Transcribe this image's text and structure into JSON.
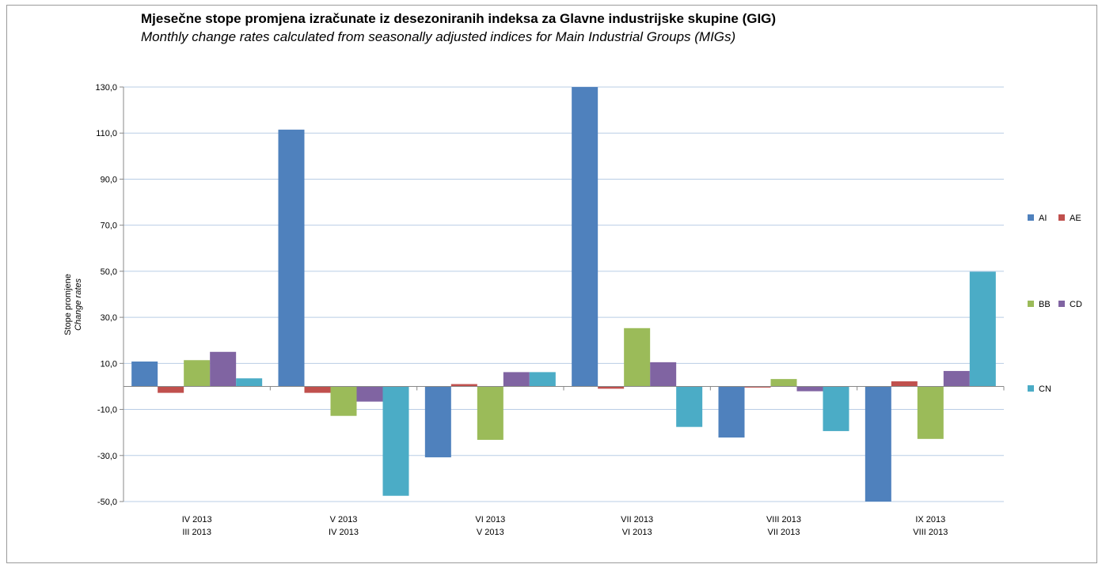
{
  "chart_data": {
    "type": "bar",
    "title": "Mjesečne stope promjena izračunate iz desezoniranih indeksa za Glavne industrijske skupine (GIG)",
    "subtitle": "Monthly change rates calculated from seasonally adjusted indices for Main Industrial Groups (MIGs)",
    "ylabel": "Stope promjene",
    "ylabel_en": "Change rates",
    "ylim": [
      -50,
      130
    ],
    "yticks": [
      "130,0",
      "110,0",
      "90,0",
      "70,0",
      "50,0",
      "30,0",
      "10,0",
      "-10,0",
      "-30,0",
      "-50,0"
    ],
    "ytick_values": [
      130,
      110,
      90,
      70,
      50,
      30,
      10,
      -10,
      -30,
      -50
    ],
    "grid": true,
    "legend_position": "right",
    "categories": [
      {
        "line1": "IV 2013",
        "line2": "III 2013"
      },
      {
        "line1": "V 2013",
        "line2": "IV 2013"
      },
      {
        "line1": "VI 2013",
        "line2": "V 2013"
      },
      {
        "line1": "VII 2013",
        "line2": "VI 2013"
      },
      {
        "line1": "VIII 2013",
        "line2": "VII 2013"
      },
      {
        "line1": "IX 2013",
        "line2": "VIII 2013"
      }
    ],
    "series": [
      {
        "name": "AI",
        "color": "#4f81bd",
        "values": [
          10.8,
          111.5,
          -30.8,
          130.0,
          -22.2,
          -50.0
        ]
      },
      {
        "name": "AE",
        "color": "#c0504d",
        "values": [
          -2.8,
          -2.8,
          1.0,
          -1.0,
          -0.5,
          2.2
        ]
      },
      {
        "name": "BB",
        "color": "#9bbb59",
        "values": [
          11.4,
          -12.8,
          -23.2,
          25.3,
          3.2,
          -22.8
        ]
      },
      {
        "name": "CD",
        "color": "#8064a2",
        "values": [
          15.0,
          -6.6,
          6.2,
          10.5,
          -2.1,
          6.7
        ]
      },
      {
        "name": "CN",
        "color": "#4bacc6",
        "values": [
          3.5,
          -47.5,
          6.2,
          -17.6,
          -19.4,
          49.8
        ]
      }
    ]
  }
}
